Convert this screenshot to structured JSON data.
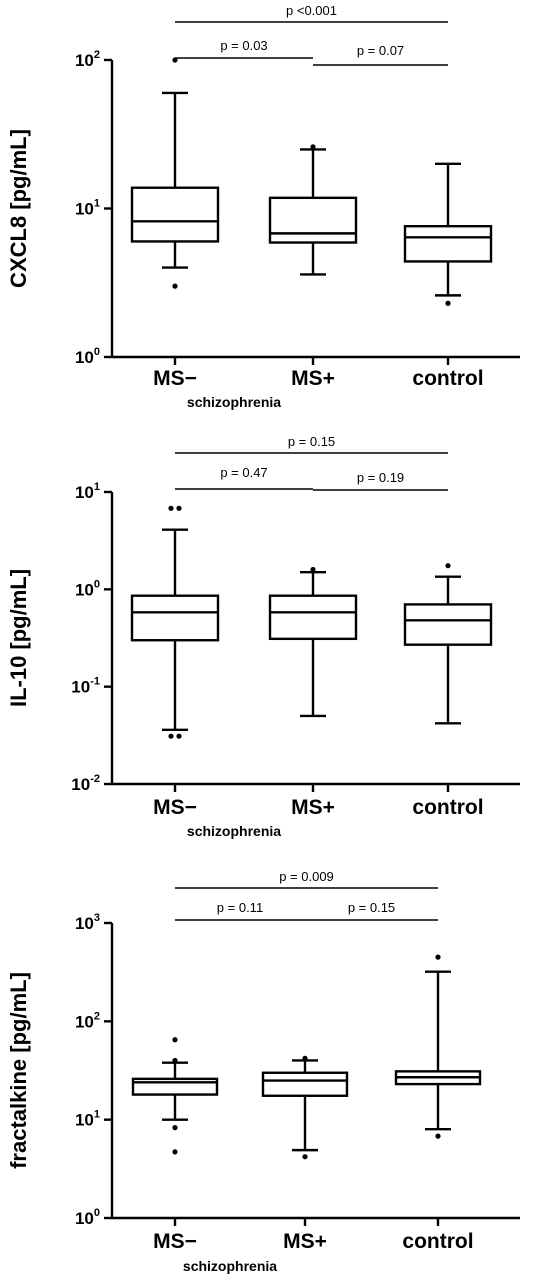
{
  "chart_data": [
    {
      "type": "box",
      "ylabel": "CXCL8 [pg/mL]",
      "yscale": "log",
      "ylim": [
        1,
        100
      ],
      "yticks": [
        {
          "base": "10",
          "exp": "0"
        },
        {
          "base": "10",
          "exp": "1"
        },
        {
          "base": "10",
          "exp": "2"
        }
      ],
      "categories": [
        "MS−",
        "MS+",
        "control"
      ],
      "group_label": "schizophrenia",
      "boxes": [
        {
          "whisker_low": 4.0,
          "q1": 6.0,
          "median": 8.2,
          "q3": 13.8,
          "whisker_high": 60,
          "outliers": [
            3.0,
            100
          ]
        },
        {
          "whisker_low": 3.6,
          "q1": 5.9,
          "median": 6.8,
          "q3": 11.8,
          "whisker_high": 25,
          "outliers": [
            26
          ]
        },
        {
          "whisker_low": 2.6,
          "q1": 4.4,
          "median": 6.4,
          "q3": 7.6,
          "whisker_high": 20,
          "outliers": [
            2.3
          ]
        }
      ],
      "comparisons": [
        {
          "from": 0,
          "to": 2,
          "label": "p <0.001"
        },
        {
          "from": 0,
          "to": 1,
          "label": "p = 0.03"
        },
        {
          "from": 1,
          "to": 2,
          "label": "p = 0.07"
        }
      ]
    },
    {
      "type": "box",
      "ylabel": "IL-10 [pg/mL]",
      "yscale": "log",
      "ylim": [
        0.01,
        10
      ],
      "yticks": [
        {
          "base": "10",
          "exp": "-2"
        },
        {
          "base": "10",
          "exp": "-1"
        },
        {
          "base": "10",
          "exp": "0"
        },
        {
          "base": "10",
          "exp": "1"
        }
      ],
      "categories": [
        "MS−",
        "MS+",
        "control"
      ],
      "group_label": "schizophrenia",
      "boxes": [
        {
          "whisker_low": 0.036,
          "q1": 0.3,
          "median": 0.58,
          "q3": 0.86,
          "whisker_high": 4.1,
          "outliers": [
            0.031,
            0.031,
            6.8,
            6.8
          ]
        },
        {
          "whisker_low": 0.05,
          "q1": 0.31,
          "median": 0.58,
          "q3": 0.86,
          "whisker_high": 1.5,
          "outliers": [
            1.6
          ]
        },
        {
          "whisker_low": 0.042,
          "q1": 0.27,
          "median": 0.48,
          "q3": 0.7,
          "whisker_high": 1.35,
          "outliers": [
            1.75
          ]
        }
      ],
      "comparisons": [
        {
          "from": 0,
          "to": 2,
          "label": "p = 0.15"
        },
        {
          "from": 0,
          "to": 1,
          "label": "p = 0.47"
        },
        {
          "from": 1,
          "to": 2,
          "label": "p = 0.19"
        }
      ]
    },
    {
      "type": "box",
      "ylabel": "fractalkine [pg/mL]",
      "yscale": "log",
      "ylim": [
        1,
        1000
      ],
      "yticks": [
        {
          "base": "10",
          "exp": "0"
        },
        {
          "base": "10",
          "exp": "1"
        },
        {
          "base": "10",
          "exp": "2"
        },
        {
          "base": "10",
          "exp": "3"
        }
      ],
      "categories": [
        "MS−",
        "MS+",
        "control"
      ],
      "group_label": "schizophrenia",
      "boxes": [
        {
          "whisker_low": 10,
          "q1": 18,
          "median": 24,
          "q3": 26,
          "whisker_high": 38,
          "outliers": [
            4.7,
            8.3,
            40,
            65
          ]
        },
        {
          "whisker_low": 4.9,
          "q1": 17.5,
          "median": 25,
          "q3": 30,
          "whisker_high": 40,
          "outliers": [
            4.2,
            42
          ]
        },
        {
          "whisker_low": 8,
          "q1": 23,
          "median": 27,
          "q3": 31,
          "whisker_high": 320,
          "outliers": [
            6.8,
            450
          ]
        }
      ],
      "comparisons": [
        {
          "from": 0,
          "to": 2,
          "label": "p = 0.009"
        },
        {
          "from": 0,
          "to": 1,
          "label": "p = 0.11"
        },
        {
          "from": 1,
          "to": 2,
          "label": "p = 0.15"
        }
      ]
    }
  ]
}
